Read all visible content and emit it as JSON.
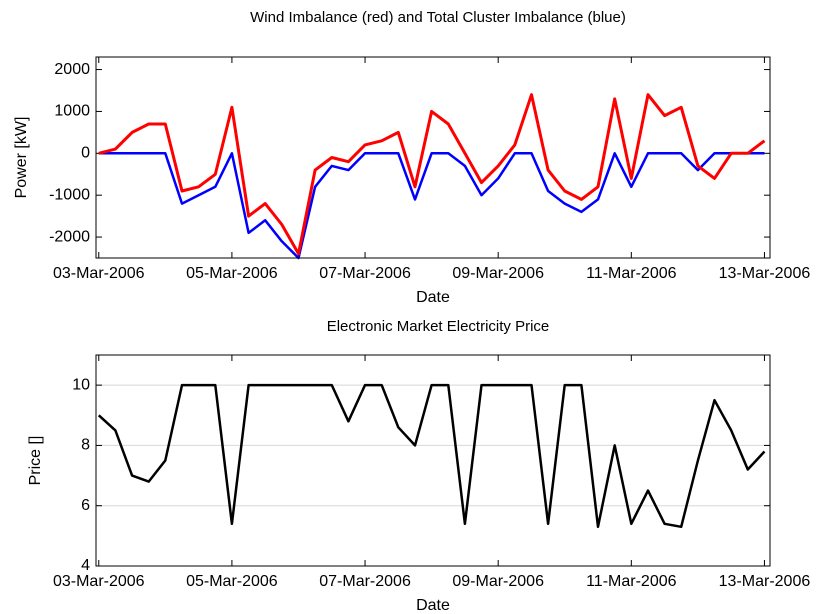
{
  "chart_data": [
    {
      "type": "line",
      "title": "Wind Imbalance (red) and Total Cluster Imbalance (blue)",
      "x_label": "Date",
      "y_label": "Power [kW]",
      "x": [
        "2006-03-03T00:00",
        "2006-03-03T06:00",
        "2006-03-03T12:00",
        "2006-03-03T18:00",
        "2006-03-04T00:00",
        "2006-03-04T06:00",
        "2006-03-04T12:00",
        "2006-03-04T18:00",
        "2006-03-05T00:00",
        "2006-03-05T06:00",
        "2006-03-05T12:00",
        "2006-03-05T18:00",
        "2006-03-06T00:00",
        "2006-03-06T06:00",
        "2006-03-06T12:00",
        "2006-03-06T18:00",
        "2006-03-07T00:00",
        "2006-03-07T06:00",
        "2006-03-07T12:00",
        "2006-03-07T18:00",
        "2006-03-08T00:00",
        "2006-03-08T06:00",
        "2006-03-08T12:00",
        "2006-03-08T18:00",
        "2006-03-09T00:00",
        "2006-03-09T06:00",
        "2006-03-09T12:00",
        "2006-03-09T18:00",
        "2006-03-10T00:00",
        "2006-03-10T06:00",
        "2006-03-10T12:00",
        "2006-03-10T18:00",
        "2006-03-11T00:00",
        "2006-03-11T06:00",
        "2006-03-11T12:00",
        "2006-03-11T18:00",
        "2006-03-12T00:00",
        "2006-03-12T06:00",
        "2006-03-12T12:00",
        "2006-03-12T18:00",
        "2006-03-13T00:00"
      ],
      "series": [
        {
          "color": "#0000ff",
          "values": [
            0,
            0,
            0,
            0,
            0,
            -1200,
            -1000,
            -800,
            0,
            -1900,
            -1600,
            -2100,
            -2500,
            -800,
            -300,
            -400,
            0,
            0,
            0,
            -1100,
            0,
            0,
            -300,
            -1000,
            -600,
            0,
            0,
            -900,
            -1200,
            -1400,
            -1100,
            0,
            -800,
            0,
            0,
            0,
            -400,
            0,
            0,
            0,
            0
          ]
        },
        {
          "color": "#ff0000",
          "values": [
            0,
            100,
            500,
            700,
            700,
            -900,
            -800,
            -500,
            1100,
            -1500,
            -1200,
            -1700,
            -2400,
            -400,
            -100,
            -200,
            200,
            300,
            500,
            -800,
            1000,
            700,
            0,
            -700,
            -300,
            200,
            1400,
            -400,
            -900,
            -1100,
            -800,
            1300,
            -600,
            1400,
            900,
            1100,
            -300,
            -600,
            0,
            0,
            300
          ]
        }
      ],
      "xlim": [
        "2006-03-02T23:00",
        "2006-03-13T02:00"
      ],
      "xticks": [
        {
          "value": "2006-03-03T00:00",
          "label": "03-Mar-2006"
        },
        {
          "value": "2006-03-05T00:00",
          "label": "05-Mar-2006"
        },
        {
          "value": "2006-03-07T00:00",
          "label": "07-Mar-2006"
        },
        {
          "value": "2006-03-09T00:00",
          "label": "09-Mar-2006"
        },
        {
          "value": "2006-03-11T00:00",
          "label": "11-Mar-2006"
        },
        {
          "value": "2006-03-13T00:00",
          "label": "13-Mar-2006"
        }
      ],
      "ylim": [
        -2500,
        2300
      ],
      "yticks": [
        -2000,
        -1000,
        0,
        1000,
        2000
      ],
      "grid": false
    },
    {
      "type": "line",
      "title": "Electronic Market Electricity Price",
      "x_label": "Date",
      "y_label": "Price []",
      "x": [
        "2006-03-03T00:00",
        "2006-03-03T06:00",
        "2006-03-03T12:00",
        "2006-03-03T18:00",
        "2006-03-04T00:00",
        "2006-03-04T06:00",
        "2006-03-04T12:00",
        "2006-03-04T18:00",
        "2006-03-05T00:00",
        "2006-03-05T06:00",
        "2006-03-05T12:00",
        "2006-03-05T18:00",
        "2006-03-06T00:00",
        "2006-03-06T06:00",
        "2006-03-06T12:00",
        "2006-03-06T18:00",
        "2006-03-07T00:00",
        "2006-03-07T06:00",
        "2006-03-07T12:00",
        "2006-03-07T18:00",
        "2006-03-08T00:00",
        "2006-03-08T06:00",
        "2006-03-08T12:00",
        "2006-03-08T18:00",
        "2006-03-09T00:00",
        "2006-03-09T06:00",
        "2006-03-09T12:00",
        "2006-03-09T18:00",
        "2006-03-10T00:00",
        "2006-03-10T06:00",
        "2006-03-10T12:00",
        "2006-03-10T18:00",
        "2006-03-11T00:00",
        "2006-03-11T06:00",
        "2006-03-11T12:00",
        "2006-03-11T18:00",
        "2006-03-12T00:00",
        "2006-03-12T06:00",
        "2006-03-12T12:00",
        "2006-03-12T18:00",
        "2006-03-13T00:00"
      ],
      "series": [
        {
          "color": "#000000",
          "values": [
            9.0,
            8.5,
            7.0,
            6.8,
            7.5,
            10,
            10,
            10,
            5.4,
            10,
            10,
            10,
            10,
            10,
            10,
            8.8,
            10,
            10,
            8.6,
            8.0,
            10,
            10,
            5.4,
            10,
            10,
            10,
            10,
            5.4,
            10,
            10,
            5.3,
            8.0,
            5.4,
            6.5,
            5.4,
            5.3,
            7.5,
            9.5,
            8.5,
            7.2,
            7.8
          ]
        }
      ],
      "xlim": [
        "2006-03-02T23:00",
        "2006-03-13T02:00"
      ],
      "xticks": [
        {
          "value": "2006-03-03T00:00",
          "label": "03-Mar-2006"
        },
        {
          "value": "2006-03-05T00:00",
          "label": "05-Mar-2006"
        },
        {
          "value": "2006-03-07T00:00",
          "label": "07-Mar-2006"
        },
        {
          "value": "2006-03-09T00:00",
          "label": "09-Mar-2006"
        },
        {
          "value": "2006-03-11T00:00",
          "label": "11-Mar-2006"
        },
        {
          "value": "2006-03-13T00:00",
          "label": "13-Mar-2006"
        }
      ],
      "ylim": [
        4,
        11
      ],
      "yticks": [
        4,
        6,
        8,
        10
      ],
      "grid": true
    }
  ]
}
